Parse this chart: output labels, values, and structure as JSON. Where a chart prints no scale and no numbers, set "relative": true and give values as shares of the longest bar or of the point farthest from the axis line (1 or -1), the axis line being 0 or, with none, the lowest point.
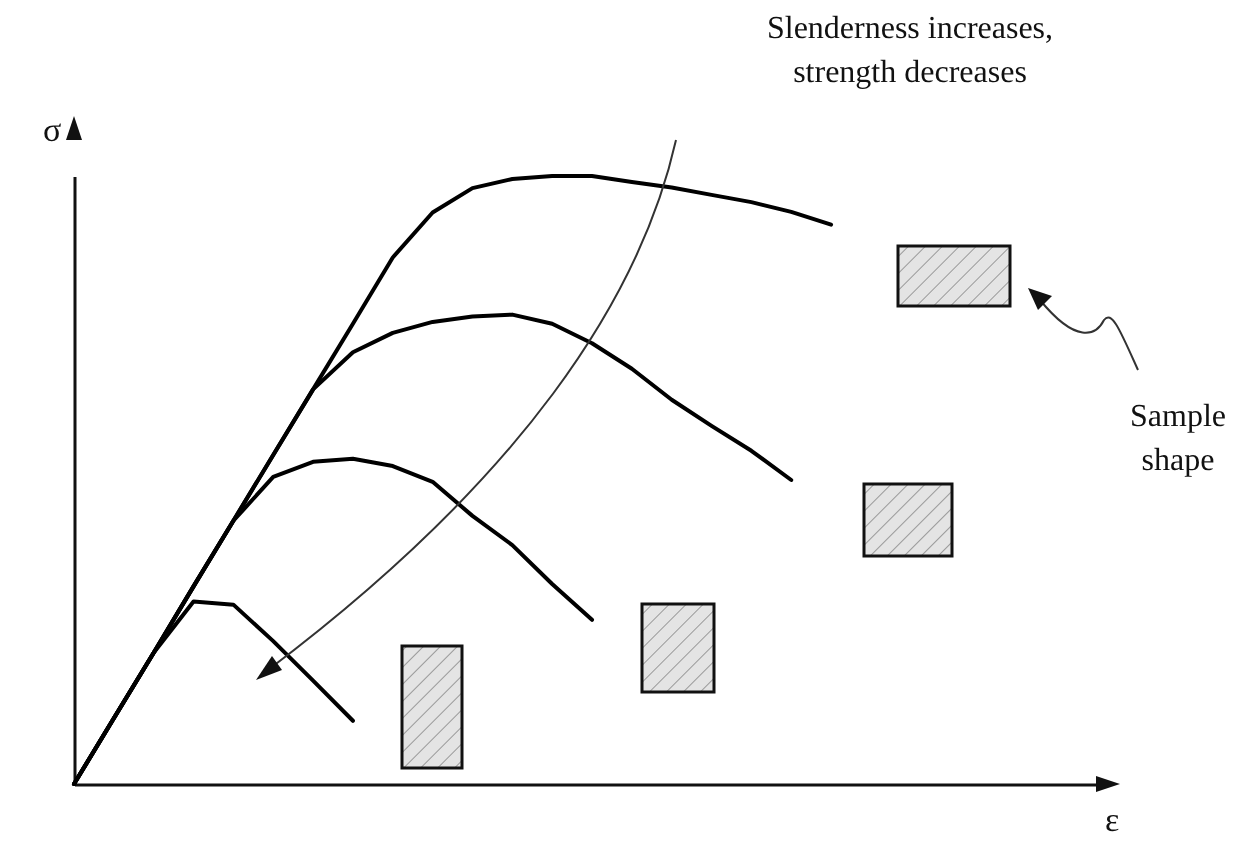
{
  "chart_data": {
    "type": "line",
    "relative": true,
    "xlabel": "ε",
    "ylabel": "σ",
    "annotations": [
      "Slenderness increases, strength decreases",
      "Sample shape"
    ],
    "categories": [
      null,
      null,
      null,
      null,
      null,
      null,
      null,
      null,
      null,
      null,
      null,
      null,
      null,
      null,
      null,
      null,
      null,
      null,
      null,
      null,
      null,
      null,
      null,
      null,
      null,
      null,
      null
    ],
    "series": [
      {
        "color": "#000000",
        "values": [
          0,
          0.108,
          0.216,
          0.325,
          0.433,
          0.541,
          0.649,
          0.757,
          0.866,
          0.94,
          0.98,
          0.995,
          1,
          1,
          0.99,
          0.981,
          0.969,
          0.957,
          0.941,
          0.92,
          null,
          null,
          null,
          null,
          null,
          null,
          null
        ]
      },
      {
        "color": "#000000",
        "values": [
          0,
          0.108,
          0.216,
          0.325,
          0.433,
          0.541,
          0.649,
          0.71,
          0.742,
          0.76,
          0.769,
          0.772,
          0.757,
          0.725,
          0.683,
          0.632,
          0.589,
          0.548,
          0.5,
          null,
          null,
          null,
          null,
          null,
          null,
          null,
          null
        ]
      },
      {
        "color": "#000000",
        "values": [
          0,
          0.108,
          0.216,
          0.325,
          0.433,
          0.505,
          0.53,
          0.535,
          0.523,
          0.497,
          0.441,
          0.393,
          0.329,
          0.27,
          null,
          null,
          null,
          null,
          null,
          null,
          null,
          null,
          null,
          null,
          null,
          null,
          null
        ]
      },
      {
        "color": "#000000",
        "values": [
          0,
          0.108,
          0.216,
          0.3,
          0.295,
          0.235,
          0.17,
          0.104,
          null,
          null,
          null,
          null,
          null,
          null,
          null,
          null,
          null,
          null,
          null,
          null,
          null,
          null,
          null,
          null,
          null,
          null,
          null
        ]
      }
    ]
  }
}
